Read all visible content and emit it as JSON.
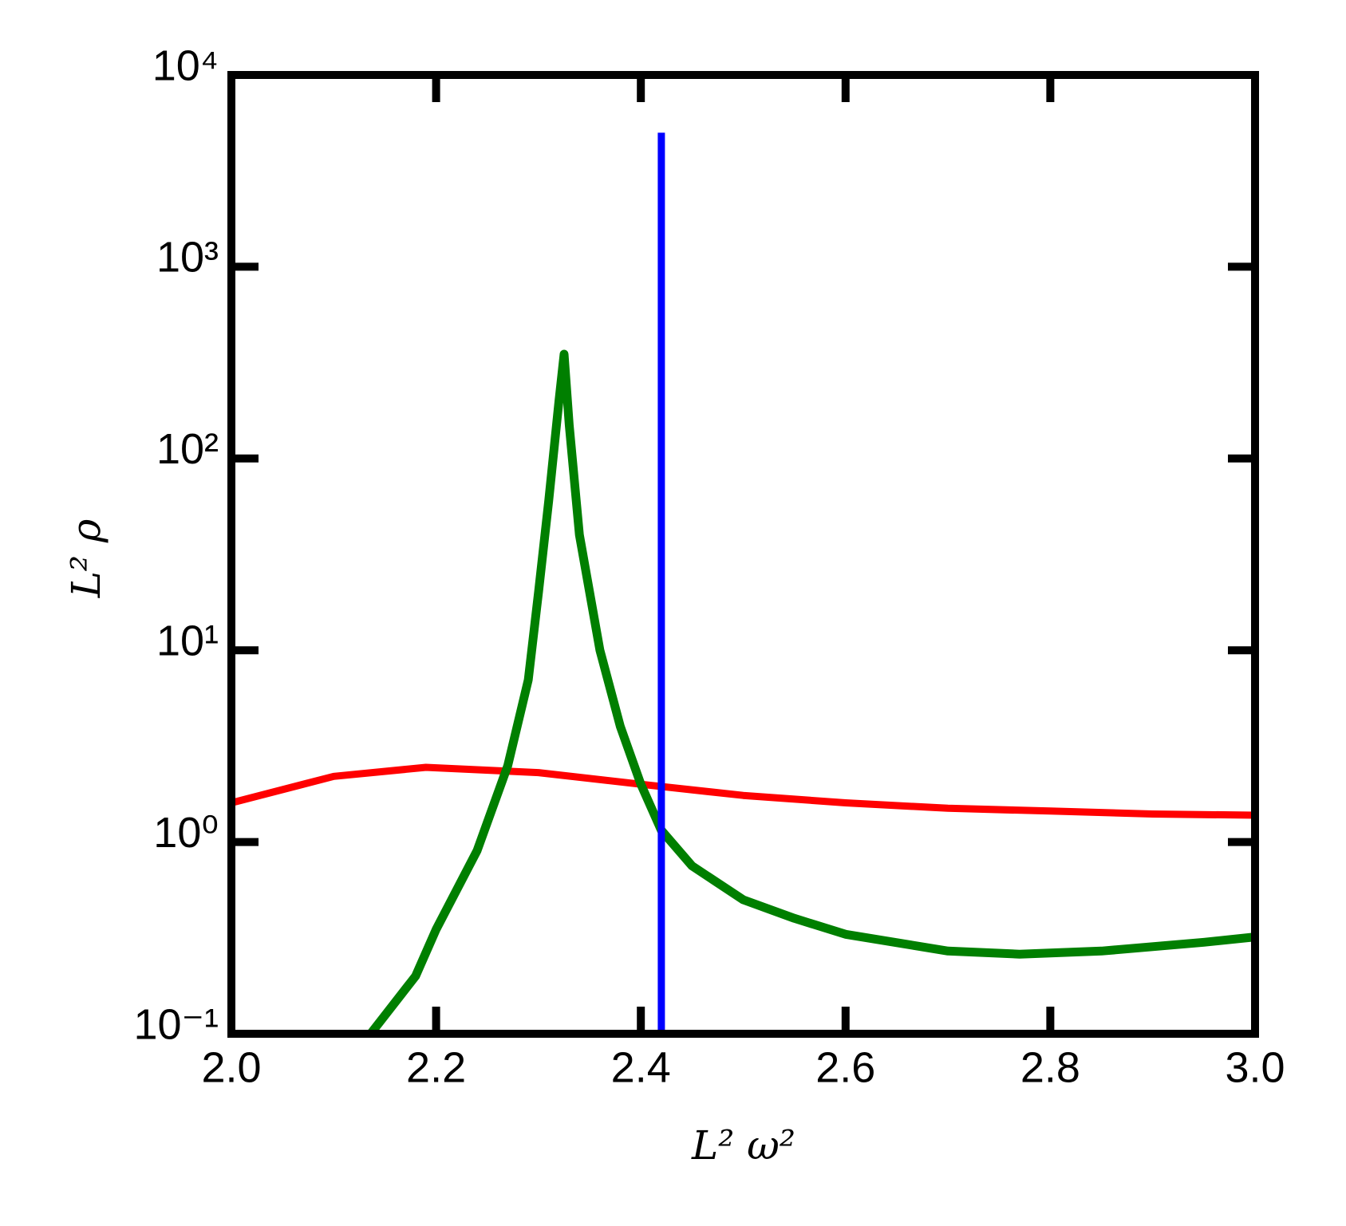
{
  "chart_data": {
    "type": "line",
    "xlabel": "L² ω²",
    "ylabel": "L² ρ",
    "xlim": [
      2.0,
      3.0
    ],
    "xticks": [
      {
        "value": 2.0,
        "label": "2.0"
      },
      2.2,
      2.4,
      2.6,
      2.8,
      {
        "value": 3.0,
        "label": "3.0"
      }
    ],
    "ylim": [
      0.1,
      10000
    ],
    "log_y": true,
    "yticks": [
      {
        "value": 0.1,
        "label": "10⁻¹"
      },
      {
        "value": 1,
        "label": "10⁰"
      },
      {
        "value": 10,
        "label": "10¹"
      },
      {
        "value": 100,
        "label": "10²"
      },
      {
        "value": 1000,
        "label": "10³"
      },
      {
        "value": 10000,
        "label": "10⁴"
      }
    ],
    "series": [
      {
        "color": "#ff0000",
        "x": [
          2.0,
          2.1,
          2.19,
          2.3,
          2.4,
          2.5,
          2.6,
          2.7,
          2.8,
          2.9,
          3.0
        ],
        "values": [
          1.6,
          2.2,
          2.45,
          2.3,
          2.0,
          1.75,
          1.6,
          1.5,
          1.45,
          1.4,
          1.38
        ]
      },
      {
        "color": "#007f00",
        "x": [
          2.136,
          2.18,
          2.2,
          2.24,
          2.27,
          2.29,
          2.3,
          2.31,
          2.32,
          2.325,
          2.33,
          2.34,
          2.36,
          2.38,
          2.4,
          2.42,
          2.45,
          2.5,
          2.55,
          2.6,
          2.7,
          2.77,
          2.85,
          2.95,
          3.0
        ],
        "values": [
          0.1,
          0.2,
          0.35,
          0.9,
          2.5,
          7,
          20,
          60,
          200,
          350,
          150,
          40,
          10,
          4,
          2,
          1.15,
          0.75,
          0.5,
          0.4,
          0.33,
          0.27,
          0.26,
          0.27,
          0.3,
          0.32
        ]
      },
      {
        "color": "#0000ff",
        "x": [
          2.42,
          2.42
        ],
        "values": [
          0.1,
          5000
        ]
      }
    ]
  }
}
